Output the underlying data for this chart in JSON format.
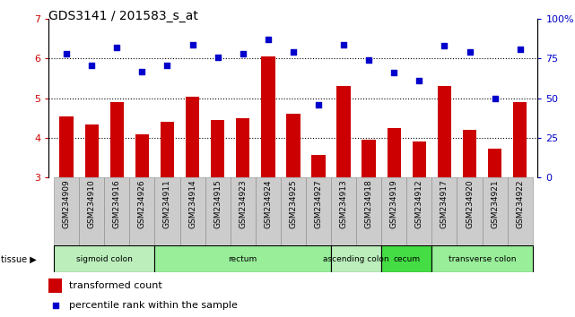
{
  "title": "GDS3141 / 201583_s_at",
  "samples": [
    "GSM234909",
    "GSM234910",
    "GSM234916",
    "GSM234926",
    "GSM234911",
    "GSM234914",
    "GSM234915",
    "GSM234923",
    "GSM234924",
    "GSM234925",
    "GSM234927",
    "GSM234913",
    "GSM234918",
    "GSM234919",
    "GSM234912",
    "GSM234917",
    "GSM234920",
    "GSM234921",
    "GSM234922"
  ],
  "bar_values": [
    4.55,
    4.35,
    4.9,
    4.1,
    4.4,
    5.05,
    4.45,
    4.5,
    6.05,
    4.6,
    3.57,
    5.3,
    3.95,
    4.25,
    3.9,
    5.3,
    4.2,
    3.72,
    4.9
  ],
  "dot_values": [
    78,
    71,
    82,
    67,
    71,
    84,
    76,
    78,
    87,
    79,
    46,
    84,
    74,
    66,
    61,
    83,
    79,
    50,
    81
  ],
  "bar_color": "#cc0000",
  "dot_color": "#0000cc",
  "ylim_left": [
    3,
    7
  ],
  "ylim_right": [
    0,
    100
  ],
  "yticks_left": [
    3,
    4,
    5,
    6,
    7
  ],
  "yticks_right": [
    0,
    25,
    50,
    75,
    100
  ],
  "ytick_labels_right": [
    "0",
    "25",
    "50",
    "75",
    "100%"
  ],
  "grid_values": [
    4,
    5,
    6
  ],
  "tissue_groups": [
    {
      "label": "sigmoid colon",
      "start": 0,
      "end": 4,
      "color": "#bbeebb"
    },
    {
      "label": "rectum",
      "start": 4,
      "end": 11,
      "color": "#99ee99"
    },
    {
      "label": "ascending colon",
      "start": 11,
      "end": 13,
      "color": "#bbeebb"
    },
    {
      "label": "cecum",
      "start": 13,
      "end": 15,
      "color": "#44dd44"
    },
    {
      "label": "transverse colon",
      "start": 15,
      "end": 19,
      "color": "#99ee99"
    }
  ],
  "legend_bar_label": "transformed count",
  "legend_dot_label": "percentile rank within the sample",
  "tissue_label": "tissue",
  "bar_left_color": "#cc0000",
  "dot_right_color": "#0000cc",
  "sample_box_color": "#cccccc",
  "sample_box_edge": "#888888"
}
